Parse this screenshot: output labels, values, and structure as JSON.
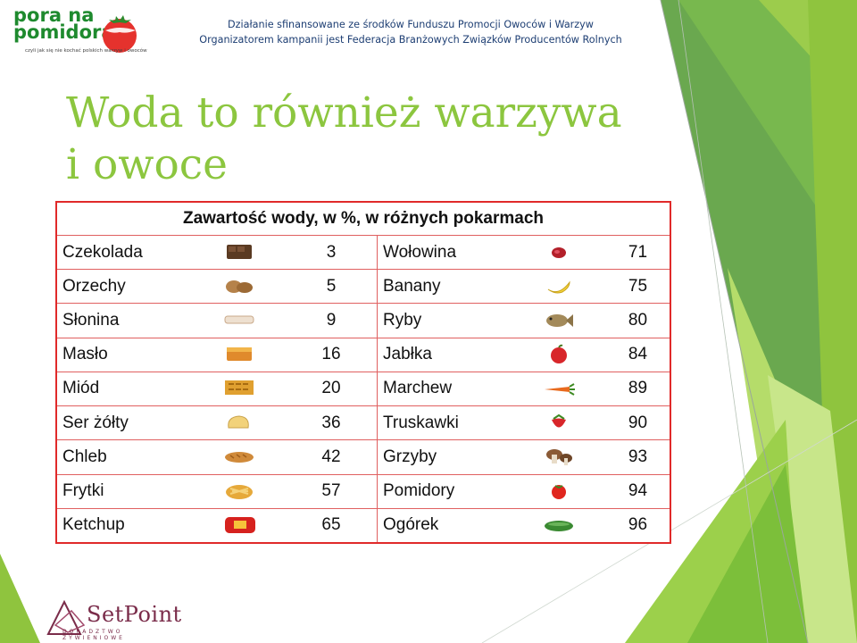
{
  "header": {
    "line1": "Działanie sfinansowane ze środków Funduszu Promocji Owoców i Warzyw",
    "line2": "Organizatorem kampanii jest Federacja Branżowych Związków Producentów Rolnych"
  },
  "logo": {
    "text_line1": "pora na",
    "text_line2": "pomidora",
    "tagline": "czyli jak się nie kochać polskich warzyw i owoców"
  },
  "title": "Woda to również warzywa i owoce",
  "table": {
    "caption": "Zawartość wody, w %,  w różnych pokarmach",
    "rows": [
      {
        "left_name": "Czekolada",
        "left_icon": "chocolate-icon",
        "left_value": "3",
        "right_name": "Wołowina",
        "right_icon": "beef-icon",
        "right_value": "71"
      },
      {
        "left_name": "Orzechy",
        "left_icon": "nuts-icon",
        "left_value": "5",
        "right_name": "Banany",
        "right_icon": "banana-icon",
        "right_value": "75"
      },
      {
        "left_name": "Słonina",
        "left_icon": "lard-icon",
        "left_value": "9",
        "right_name": "Ryby",
        "right_icon": "fish-icon",
        "right_value": "80"
      },
      {
        "left_name": "Masło",
        "left_icon": "butter-icon",
        "left_value": "16",
        "right_name": "Jabłka",
        "right_icon": "apple-icon",
        "right_value": "84"
      },
      {
        "left_name": "Miód",
        "left_icon": "honey-icon",
        "left_value": "20",
        "right_name": "Marchew",
        "right_icon": "carrot-icon",
        "right_value": "89"
      },
      {
        "left_name": "Ser żółty",
        "left_icon": "cheese-icon",
        "left_value": "36",
        "right_name": "Truskawki",
        "right_icon": "strawberry-icon",
        "right_value": "90"
      },
      {
        "left_name": "Chleb",
        "left_icon": "bread-icon",
        "left_value": "42",
        "right_name": "Grzyby",
        "right_icon": "mushroom-icon",
        "right_value": "93"
      },
      {
        "left_name": "Frytki",
        "left_icon": "fries-icon",
        "left_value": "57",
        "right_name": "Pomidory",
        "right_icon": "tomato-icon",
        "right_value": "94"
      },
      {
        "left_name": "Ketchup",
        "left_icon": "ketchup-icon",
        "left_value": "65",
        "right_name": "Ogórek",
        "right_icon": "cucumber-icon",
        "right_value": "96"
      }
    ]
  },
  "footer_logo": {
    "name": "SetPoint",
    "subtitle": "DORADZTWO ŻYWIENIOWE"
  },
  "colors": {
    "title_green": "#8cc63f",
    "header_blue": "#1d3e73",
    "table_red": "#e02a2a",
    "deco_dark_green": "#5e9c3a",
    "deco_light_green": "#a6d14c"
  }
}
